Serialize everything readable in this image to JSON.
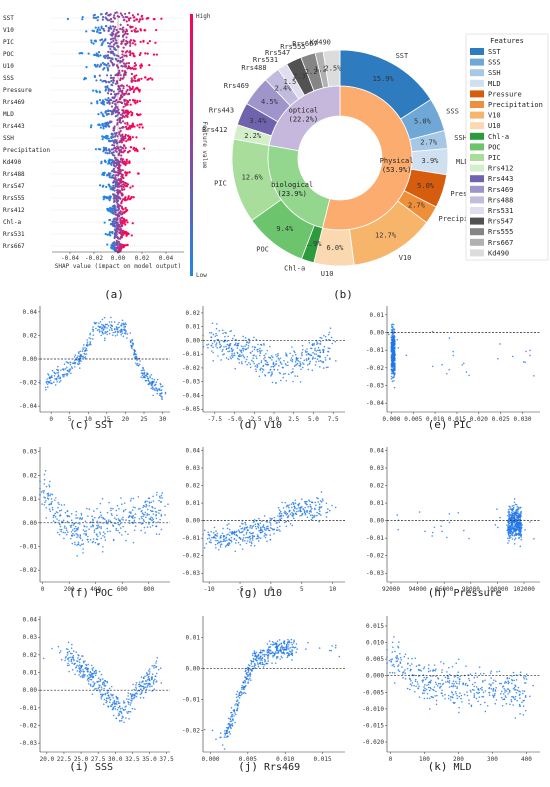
{
  "panel_captions": [
    "(a)",
    "(b)",
    "(c)",
    "(d)",
    "(e)",
    "(f)",
    "(g)",
    "(h)",
    "(i)",
    "(j)",
    "(k)"
  ],
  "colors": {
    "shap_high": "#ff0052",
    "shap_low": "#1e88e5",
    "scatter": "#1f77e8",
    "zero_line": "#222222"
  },
  "chart_data": [
    {
      "type": "scatter",
      "panel": "(a)",
      "subtype": "shap-beeswarm",
      "features": [
        "SST",
        "V10",
        "PIC",
        "POC",
        "U10",
        "SSS",
        "Pressure",
        "Rrs469",
        "MLD",
        "Rrs443",
        "SSH",
        "Precipitation",
        "Kd490",
        "Rrs488",
        "Rrs547",
        "Rrs555",
        "Rrs412",
        "Chl-a",
        "Rrs531",
        "Rrs667"
      ],
      "feature_label_colors": {
        "Kd490": "#d62728",
        "Rrs488": "#d62728",
        "Rrs547": "#d62728",
        "Rrs555": "#d62728",
        "Rrs412": "#d62728"
      },
      "spread": [
        0.04,
        0.03,
        0.028,
        0.027,
        0.027,
        0.03,
        0.025,
        0.022,
        0.018,
        0.02,
        0.015,
        0.02,
        0.012,
        0.014,
        0.012,
        0.012,
        0.01,
        0.01,
        0.009,
        0.008
      ],
      "xlabel": "SHAP value (impact on model output)",
      "xticks": [
        "-0.04",
        "-0.02",
        "0.00",
        "0.02",
        "0.04"
      ],
      "xlim": [
        -0.055,
        0.055
      ],
      "colorbar_label": "Feature value",
      "colorbar_high": "High",
      "colorbar_low": "Low"
    },
    {
      "type": "pie",
      "panel": "(b)",
      "subtype": "nested-donut",
      "legend_title": "Features",
      "legend_position": "right",
      "outer": [
        {
          "name": "SST",
          "value": 15.9,
          "label": "15.9%",
          "color": "#2f7bbf"
        },
        {
          "name": "SSS",
          "value": 5.0,
          "label": "5.0%",
          "color": "#6fa8d6"
        },
        {
          "name": "SSH",
          "value": 2.7,
          "label": "2.7%",
          "color": "#a6c8e6"
        },
        {
          "name": "MLD",
          "value": 3.9,
          "label": "3.9%",
          "color": "#cfe0f1"
        },
        {
          "name": "Pressure",
          "value": 5.0,
          "label": "5.0%",
          "color": "#d65c0e"
        },
        {
          "name": "Precipitation",
          "value": 2.7,
          "label": "2.7%",
          "color": "#f08f3a"
        },
        {
          "name": "V10",
          "value": 12.7,
          "label": "12.7%",
          "color": "#f7b56c"
        },
        {
          "name": "U10",
          "value": 6.0,
          "label": "6.0%",
          "color": "#fad8b0"
        },
        {
          "name": "Chl-a",
          "value": 1.9,
          "label": "1.9%",
          "color": "#2e9a3e"
        },
        {
          "name": "POC",
          "value": 9.4,
          "label": "9.4%",
          "color": "#6cc46c"
        },
        {
          "name": "PIC",
          "value": 12.6,
          "label": "12.6%",
          "color": "#a8dd9c"
        },
        {
          "name": "Rrs412",
          "value": 2.2,
          "label": "2.2%",
          "color": "#d3efc9"
        },
        {
          "name": "Rrs443",
          "value": 3.4,
          "label": "3.4%",
          "color": "#6f63ad"
        },
        {
          "name": "Rrs469",
          "value": 4.5,
          "label": "4.5%",
          "color": "#9f95ca"
        },
        {
          "name": "Rrs488",
          "value": 2.4,
          "label": "2.4%",
          "color": "#c1bbdd"
        },
        {
          "name": "Rrs531",
          "value": 1.5,
          "label": "1.5%",
          "color": "#e0ddee"
        },
        {
          "name": "Rrs547",
          "value": 2.3,
          "label": "2.3%",
          "color": "#525252"
        },
        {
          "name": "Rrs555",
          "value": 2.2,
          "label": "2.2%",
          "color": "#858585"
        },
        {
          "name": "Rrs667",
          "value": 1.2,
          "label": "1.2%",
          "color": "#b1b1b1"
        },
        {
          "name": "Kd490",
          "value": 2.5,
          "label": "2.5%",
          "color": "#dcdcdc"
        }
      ],
      "inner": [
        {
          "name": "Physical",
          "value": 53.9,
          "label": "(53.9%)",
          "color": "#fbac6e"
        },
        {
          "name": "biological",
          "value": 23.9,
          "label": "(23.9%)",
          "color": "#93d68d"
        },
        {
          "name": "optical",
          "value": 22.2,
          "label": "(22.2%)",
          "color": "#c6b8dd"
        }
      ]
    },
    {
      "type": "scatter",
      "panel": "(c)",
      "xlabel": "SST",
      "xticks": [
        0,
        5,
        10,
        15,
        20,
        25,
        30
      ],
      "xlim": [
        -3,
        32
      ],
      "yticks": [
        "-0.04",
        "-0.02",
        "0.00",
        "0.02",
        "0.04"
      ],
      "ylim": [
        -0.045,
        0.045
      ],
      "zero_line": 0,
      "trend": [
        [
          -1,
          -0.018
        ],
        [
          3,
          -0.012
        ],
        [
          6,
          -0.004
        ],
        [
          9,
          0.006
        ],
        [
          11,
          0.02
        ],
        [
          12,
          0.03
        ],
        [
          14,
          0.025
        ],
        [
          16,
          0.028
        ],
        [
          18,
          0.026
        ],
        [
          20,
          0.025
        ],
        [
          21,
          0.02
        ],
        [
          22,
          0.008
        ],
        [
          24,
          -0.008
        ],
        [
          27,
          -0.02
        ],
        [
          30,
          -0.028
        ]
      ],
      "noise": 0.006
    },
    {
      "type": "scatter",
      "panel": "(d)",
      "xlabel": "V10",
      "xticks": [
        "-7.5",
        "-5.0",
        "-2.5",
        "0.0",
        "2.5",
        "5.0",
        "7.5"
      ],
      "xlim": [
        -9,
        9
      ],
      "yticks": [
        "-0.05",
        "-0.04",
        "-0.03",
        "-0.02",
        "-0.01",
        "0.00",
        "0.01",
        "0.02"
      ],
      "ylim": [
        -0.052,
        0.025
      ],
      "zero_line": 0,
      "trend": [
        [
          -8,
          0.0
        ],
        [
          -5,
          -0.005
        ],
        [
          -3,
          -0.01
        ],
        [
          -1,
          -0.015
        ],
        [
          0,
          -0.018
        ],
        [
          1,
          -0.018
        ],
        [
          3,
          -0.015
        ],
        [
          5,
          -0.01
        ],
        [
          7,
          -0.005
        ]
      ],
      "noise": 0.01
    },
    {
      "type": "scatter",
      "panel": "(e)",
      "xlabel": "PIC",
      "xticks": [
        "0.000",
        "0.005",
        "0.010",
        "0.015",
        "0.020",
        "0.025",
        "0.030"
      ],
      "xlim": [
        -0.001,
        0.034
      ],
      "yticks": [
        "-0.04",
        "-0.03",
        "-0.02",
        "-0.01",
        "0.00",
        "0.01"
      ],
      "ylim": [
        -0.045,
        0.015
      ],
      "zero_line": 0,
      "trend": [
        [
          0.0,
          -0.01
        ],
        [
          0.0008,
          -0.012
        ]
      ],
      "noise": 0.012
    },
    {
      "type": "scatter",
      "panel": "(f)",
      "xlabel": "POC",
      "xticks": [
        0,
        200,
        400,
        600,
        800
      ],
      "xlim": [
        -20,
        960
      ],
      "yticks": [
        "-0.02",
        "-0.01",
        "0.00",
        "0.01",
        "0.02",
        "0.03"
      ],
      "ylim": [
        -0.025,
        0.032
      ],
      "zero_line": 0,
      "trend": [
        [
          10,
          0.015
        ],
        [
          40,
          0.01
        ],
        [
          80,
          0.005
        ],
        [
          150,
          0.0
        ],
        [
          300,
          -0.004
        ],
        [
          600,
          0.002
        ],
        [
          900,
          0.005
        ]
      ],
      "noise": 0.007
    },
    {
      "type": "scatter",
      "panel": "(g)",
      "xlabel": "U10",
      "xticks": [
        -10,
        -5,
        0,
        5,
        10
      ],
      "xlim": [
        -11,
        12
      ],
      "yticks": [
        "-0.03",
        "-0.02",
        "-0.01",
        "0.00",
        "0.01",
        "0.02",
        "0.03",
        "0.04"
      ],
      "ylim": [
        -0.035,
        0.042
      ],
      "zero_line": 0,
      "trend": [
        [
          -10,
          -0.01
        ],
        [
          -5,
          -0.008
        ],
        [
          -2,
          -0.006
        ],
        [
          0,
          -0.003
        ],
        [
          2,
          0.003
        ],
        [
          4,
          0.006
        ],
        [
          6,
          0.007
        ],
        [
          8,
          0.008
        ]
      ],
      "noise": 0.006
    },
    {
      "type": "scatter",
      "panel": "(h)",
      "xlabel": "Pressure",
      "xticks": [
        92000,
        94000,
        96000,
        98000,
        100000,
        102000
      ],
      "xlim": [
        91700,
        103200
      ],
      "yticks": [
        "-0.03",
        "-0.02",
        "-0.01",
        "0.00",
        "0.01",
        "0.02",
        "0.03",
        "0.04"
      ],
      "ylim": [
        -0.035,
        0.042
      ],
      "zero_line": 0,
      "trend": [
        [
          100800,
          -0.002
        ],
        [
          101200,
          0.0
        ],
        [
          101800,
          -0.002
        ]
      ],
      "noise": 0.008
    },
    {
      "type": "scatter",
      "panel": "(i)",
      "xlabel": "SSS",
      "xticks": [
        "20.0",
        "22.5",
        "25.0",
        "27.5",
        "30.0",
        "32.5",
        "35.0",
        "37.5"
      ],
      "xlim": [
        19,
        38
      ],
      "yticks": [
        "-0.03",
        "-0.02",
        "-0.01",
        "0.00",
        "0.01",
        "0.02",
        "0.03",
        "0.04"
      ],
      "ylim": [
        -0.035,
        0.042
      ],
      "zero_line": 0,
      "trend": [
        [
          23,
          0.02
        ],
        [
          26,
          0.01
        ],
        [
          29,
          -0.003
        ],
        [
          31,
          -0.012
        ],
        [
          32,
          -0.008
        ],
        [
          33,
          0.0
        ],
        [
          34,
          0.002
        ],
        [
          35,
          0.006
        ],
        [
          36,
          0.01
        ]
      ],
      "noise": 0.006
    },
    {
      "type": "scatter",
      "panel": "(j)",
      "xlabel": "Rrs469",
      "xticks": [
        "0.000",
        "0.005",
        "0.010",
        "0.015"
      ],
      "xlim": [
        -0.001,
        0.018
      ],
      "yticks": [
        "-0.02",
        "-0.01",
        "0.00",
        "0.01"
      ],
      "ylim": [
        -0.027,
        0.017
      ],
      "zero_line": 0,
      "trend": [
        [
          0.002,
          -0.022
        ],
        [
          0.003,
          -0.015
        ],
        [
          0.004,
          -0.008
        ],
        [
          0.005,
          -0.002
        ],
        [
          0.006,
          0.003
        ],
        [
          0.008,
          0.005
        ],
        [
          0.01,
          0.007
        ],
        [
          0.011,
          0.007
        ]
      ],
      "noise": 0.003
    },
    {
      "type": "scatter",
      "panel": "(k)",
      "xlabel": "MLD",
      "xticks": [
        0,
        100,
        200,
        300,
        400
      ],
      "xlim": [
        -10,
        440
      ],
      "yticks": [
        "-0.020",
        "-0.015",
        "-0.010",
        "-0.005",
        "0.000",
        "0.005",
        "0.010",
        "0.015"
      ],
      "ylim": [
        -0.023,
        0.018
      ],
      "zero_line": 0,
      "trend": [
        [
          5,
          0.006
        ],
        [
          20,
          0.004
        ],
        [
          50,
          0.001
        ],
        [
          100,
          -0.002
        ],
        [
          200,
          -0.003
        ],
        [
          400,
          -0.005
        ]
      ],
      "noise": 0.005
    }
  ]
}
